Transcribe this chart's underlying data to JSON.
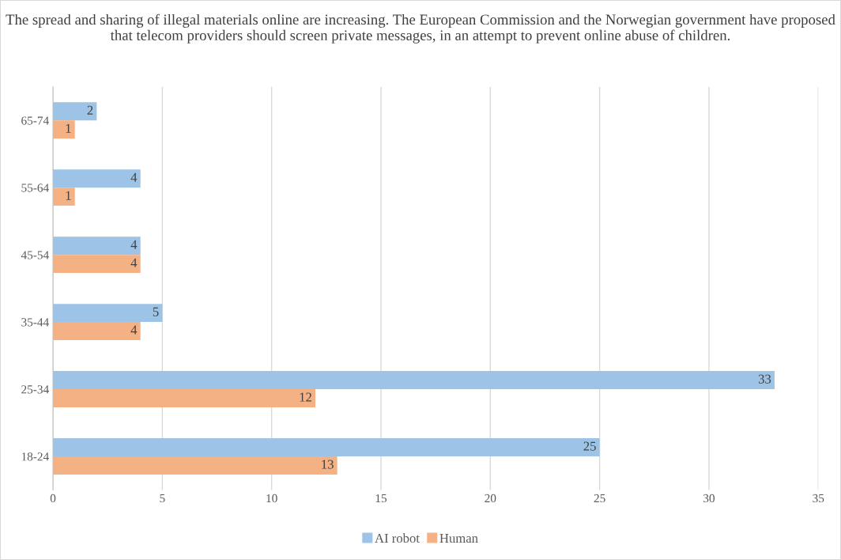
{
  "chart_data": {
    "type": "bar",
    "orientation": "horizontal",
    "title": "The spread and sharing of illegal materials online are increasing. The European Commission and the Norwegian government have proposed that telecom providers should screen private messages, in an attempt to prevent online abuse of children.",
    "categories": [
      "65-74",
      "55-64",
      "45-54",
      "35-44",
      "25-34",
      "18-24"
    ],
    "series": [
      {
        "name": "AI robot",
        "color": "#9dc3e6",
        "values": [
          2,
          4,
          4,
          5,
          33,
          25
        ]
      },
      {
        "name": "Human",
        "color": "#f4b183",
        "values": [
          1,
          1,
          4,
          4,
          12,
          13
        ]
      }
    ],
    "xlim": [
      0,
      35
    ],
    "xticks": [
      0,
      5,
      10,
      15,
      20,
      25,
      30,
      35
    ],
    "grid": "x",
    "legend": "bottom",
    "data_labels": true
  }
}
